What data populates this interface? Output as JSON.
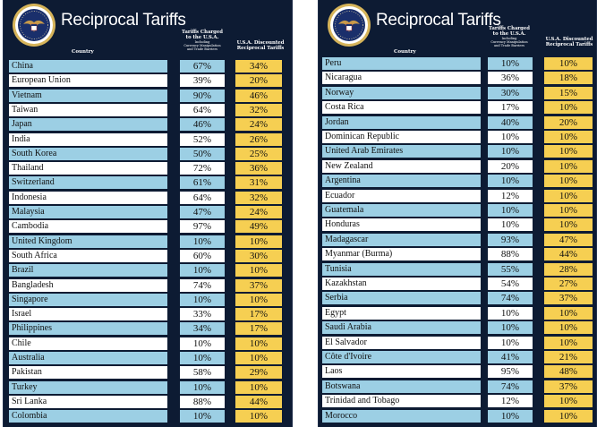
{
  "title": "Reciprocal Tariffs",
  "columns": {
    "country": "Country",
    "charged_line1": "Tariffs Charged",
    "charged_line2": "to the U.S.A.",
    "charged_small1": "Including",
    "charged_small2": "Currency Manipulation",
    "charged_small3": "and Trade Barriers",
    "discount_line1": "U.S.A. Discounted",
    "discount_line2": "Reciprocal Tariffs"
  },
  "colors": {
    "panel": "#0d1b33",
    "row_alt": "#9ccfe4",
    "row_plain": "#ffffff",
    "discount": "#f6cf52"
  },
  "left_table": [
    {
      "country": "China",
      "charged": "67%",
      "discount": "34%"
    },
    {
      "country": "European Union",
      "charged": "39%",
      "discount": "20%"
    },
    {
      "country": "Vietnam",
      "charged": "90%",
      "discount": "46%"
    },
    {
      "country": "Taiwan",
      "charged": "64%",
      "discount": "32%"
    },
    {
      "country": "Japan",
      "charged": "46%",
      "discount": "24%"
    },
    {
      "country": "India",
      "charged": "52%",
      "discount": "26%"
    },
    {
      "country": "South Korea",
      "charged": "50%",
      "discount": "25%"
    },
    {
      "country": "Thailand",
      "charged": "72%",
      "discount": "36%"
    },
    {
      "country": "Switzerland",
      "charged": "61%",
      "discount": "31%"
    },
    {
      "country": "Indonesia",
      "charged": "64%",
      "discount": "32%"
    },
    {
      "country": "Malaysia",
      "charged": "47%",
      "discount": "24%"
    },
    {
      "country": "Cambodia",
      "charged": "97%",
      "discount": "49%"
    },
    {
      "country": "United Kingdom",
      "charged": "10%",
      "discount": "10%"
    },
    {
      "country": "South Africa",
      "charged": "60%",
      "discount": "30%"
    },
    {
      "country": "Brazil",
      "charged": "10%",
      "discount": "10%"
    },
    {
      "country": "Bangladesh",
      "charged": "74%",
      "discount": "37%"
    },
    {
      "country": "Singapore",
      "charged": "10%",
      "discount": "10%"
    },
    {
      "country": "Israel",
      "charged": "33%",
      "discount": "17%"
    },
    {
      "country": "Philippines",
      "charged": "34%",
      "discount": "17%"
    },
    {
      "country": "Chile",
      "charged": "10%",
      "discount": "10%"
    },
    {
      "country": "Australia",
      "charged": "10%",
      "discount": "10%"
    },
    {
      "country": "Pakistan",
      "charged": "58%",
      "discount": "29%"
    },
    {
      "country": "Turkey",
      "charged": "10%",
      "discount": "10%"
    },
    {
      "country": "Sri Lanka",
      "charged": "88%",
      "discount": "44%"
    },
    {
      "country": "Colombia",
      "charged": "10%",
      "discount": "10%"
    }
  ],
  "right_table": [
    {
      "country": "Peru",
      "charged": "10%",
      "discount": "10%"
    },
    {
      "country": "Nicaragua",
      "charged": "36%",
      "discount": "18%"
    },
    {
      "country": "Norway",
      "charged": "30%",
      "discount": "15%"
    },
    {
      "country": "Costa Rica",
      "charged": "17%",
      "discount": "10%"
    },
    {
      "country": "Jordan",
      "charged": "40%",
      "discount": "20%"
    },
    {
      "country": "Dominican Republic",
      "charged": "10%",
      "discount": "10%"
    },
    {
      "country": "United Arab Emirates",
      "charged": "10%",
      "discount": "10%"
    },
    {
      "country": "New Zealand",
      "charged": "20%",
      "discount": "10%"
    },
    {
      "country": "Argentina",
      "charged": "10%",
      "discount": "10%"
    },
    {
      "country": "Ecuador",
      "charged": "12%",
      "discount": "10%"
    },
    {
      "country": "Guatemala",
      "charged": "10%",
      "discount": "10%"
    },
    {
      "country": "Honduras",
      "charged": "10%",
      "discount": "10%"
    },
    {
      "country": "Madagascar",
      "charged": "93%",
      "discount": "47%"
    },
    {
      "country": "Myanmar (Burma)",
      "charged": "88%",
      "discount": "44%"
    },
    {
      "country": "Tunisia",
      "charged": "55%",
      "discount": "28%"
    },
    {
      "country": "Kazakhstan",
      "charged": "54%",
      "discount": "27%"
    },
    {
      "country": "Serbia",
      "charged": "74%",
      "discount": "37%"
    },
    {
      "country": "Egypt",
      "charged": "10%",
      "discount": "10%"
    },
    {
      "country": "Saudi Arabia",
      "charged": "10%",
      "discount": "10%"
    },
    {
      "country": "El Salvador",
      "charged": "10%",
      "discount": "10%"
    },
    {
      "country": "Côte d'Ivoire",
      "charged": "41%",
      "discount": "21%"
    },
    {
      "country": "Laos",
      "charged": "95%",
      "discount": "48%"
    },
    {
      "country": "Botswana",
      "charged": "74%",
      "discount": "37%"
    },
    {
      "country": "Trinidad and Tobago",
      "charged": "12%",
      "discount": "10%"
    },
    {
      "country": "Morocco",
      "charged": "10%",
      "discount": "10%"
    }
  ]
}
